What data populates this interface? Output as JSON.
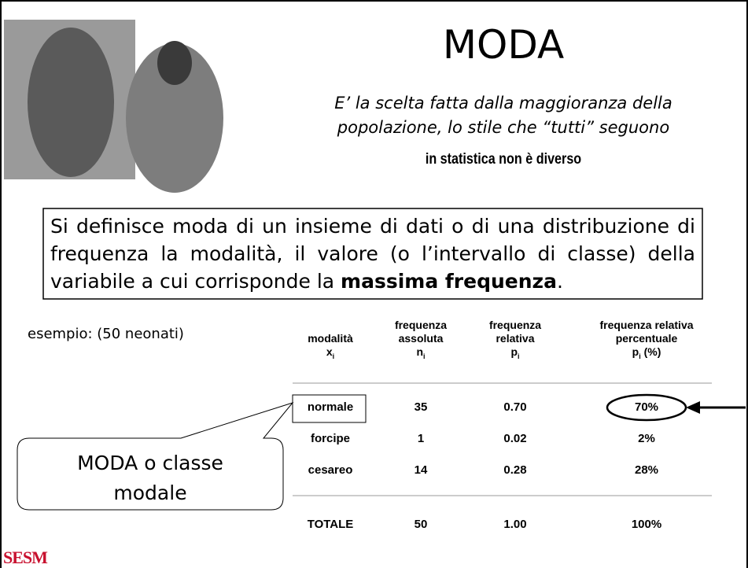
{
  "title": "MODA",
  "subtitle": [
    "E’ la scelta fatta dalla maggioranza della",
    "popolazione, lo stile che “tutti” seguono"
  ],
  "tagline": "in statistica non è diverso",
  "definition": {
    "text": "Si definisce moda di un insieme di dati o di una distribuzione di frequenza la modalità, il valore (o l’intervallo di classe) della variabile a cui corrisponde la ",
    "bold": "massima frequenza",
    "end": "."
  },
  "example": "esempio: (50 neonati)",
  "table": {
    "headers": [
      {
        "lines": [
          "modalità"
        ],
        "symbol": "x",
        "sub": "i"
      },
      {
        "lines": [
          "frequenza",
          "assoluta"
        ],
        "symbol": "n",
        "sub": "i"
      },
      {
        "lines": [
          "frequenza",
          "relativa"
        ],
        "symbol": "p",
        "sub": "i"
      },
      {
        "lines": [
          "frequenza relativa",
          "percentuale"
        ],
        "symbol": "p",
        "sub": "i",
        "suffix": "(%)"
      }
    ],
    "rows": [
      [
        "normale",
        "35",
        "0.70",
        "70%"
      ],
      [
        "forcipe",
        "1",
        "0.02",
        "2%"
      ],
      [
        "cesareo",
        "14",
        "0.28",
        "28%"
      ]
    ],
    "total": [
      "TOTALE",
      "50",
      "1.00",
      "100%"
    ]
  },
  "callout": [
    "MODA o classe",
    "modale"
  ],
  "logo": "SESM"
}
